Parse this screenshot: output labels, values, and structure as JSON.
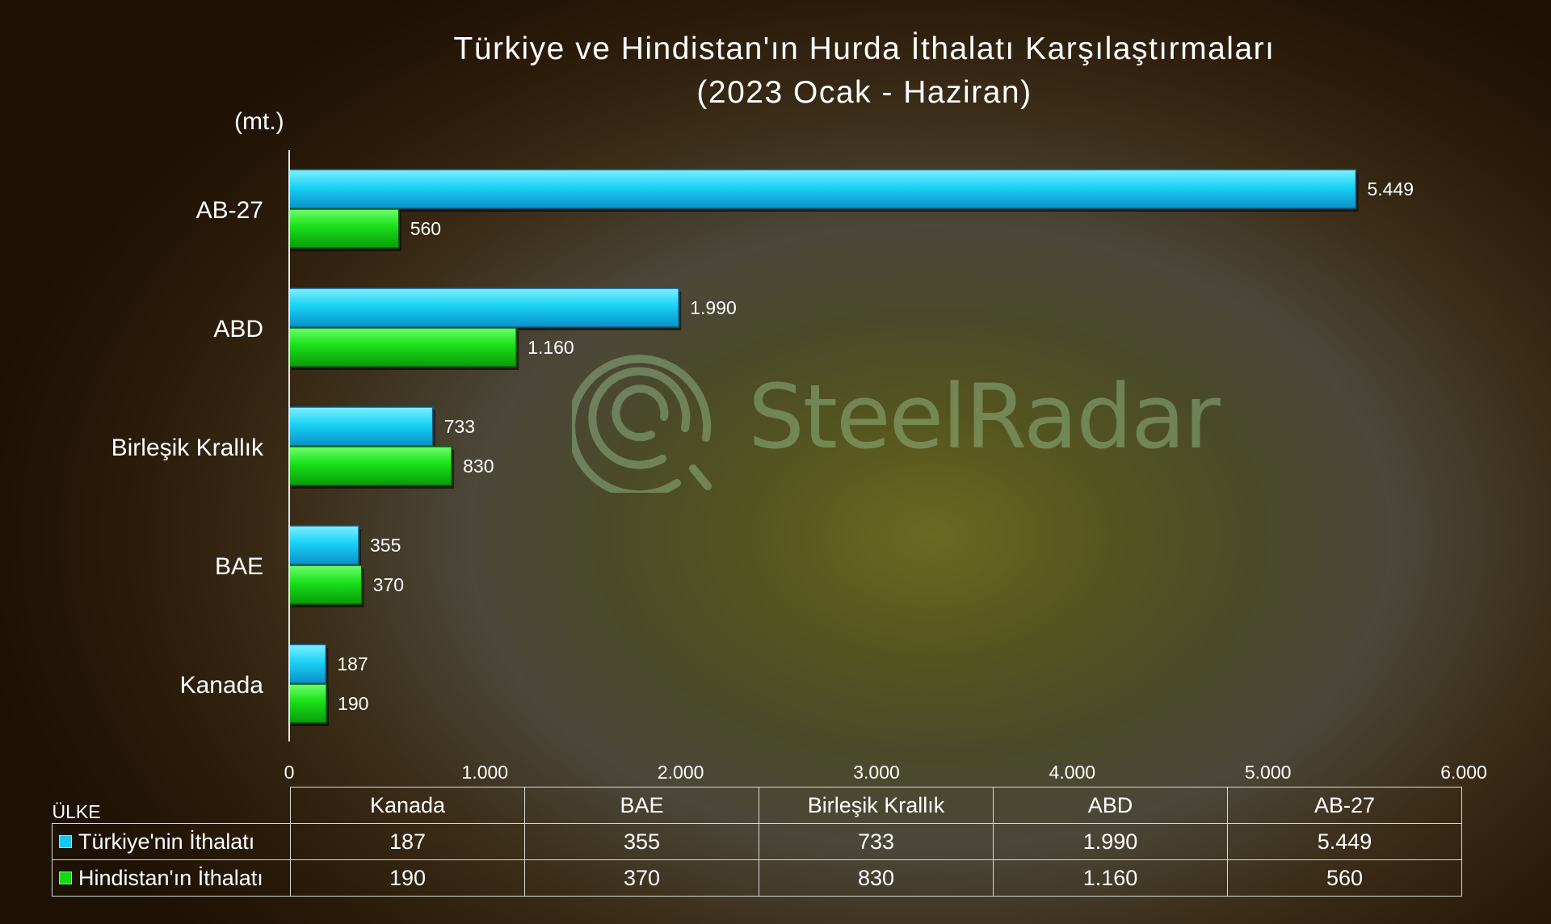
{
  "chart_data": {
    "type": "bar",
    "orientation": "horizontal",
    "title": "Türkiye ve Hindistan'ın Hurda İthalatı Karşılaştırmaları",
    "subtitle": "(2023 Ocak - Haziran)",
    "unit_label": "(mt.)",
    "categories": [
      "AB-27",
      "ABD",
      "Birleşik Krallık",
      "BAE",
      "Kanada"
    ],
    "series": [
      {
        "name": "Türkiye'nin İthalatı",
        "color": "#19c8f0",
        "values": [
          5449,
          1990,
          733,
          355,
          187
        ],
        "labels": [
          "5.449",
          "1.990",
          "733",
          "355",
          "187"
        ]
      },
      {
        "name": "Hindistan'ın İthalatı",
        "color": "#14d814",
        "values": [
          560,
          1160,
          830,
          370,
          190
        ],
        "labels": [
          "560",
          "1.160",
          "830",
          "370",
          "190"
        ]
      }
    ],
    "xlim": [
      0,
      6000
    ],
    "xticks": [
      0,
      1000,
      2000,
      3000,
      4000,
      5000,
      6000
    ],
    "xtick_labels": [
      "0",
      "1.000",
      "2.000",
      "3.000",
      "4.000",
      "5.000",
      "6.000"
    ],
    "grid": false,
    "table": {
      "header_label": "ÜLKE",
      "columns": [
        "Kanada",
        "BAE",
        "Birleşik Krallık",
        "ABD",
        "AB-27"
      ],
      "rows": [
        {
          "label": "Türkiye'nin İthalatı",
          "color": "#19c8f0",
          "cells": [
            "187",
            "355",
            "733",
            "1.990",
            "5.449"
          ]
        },
        {
          "label": "Hindistan'ın İthalatı",
          "color": "#14d814",
          "cells": [
            "190",
            "370",
            "830",
            "1.160",
            "560"
          ]
        }
      ]
    }
  },
  "watermark": {
    "text": "SteelRadar",
    "icon": "steelradar-logo-icon"
  }
}
